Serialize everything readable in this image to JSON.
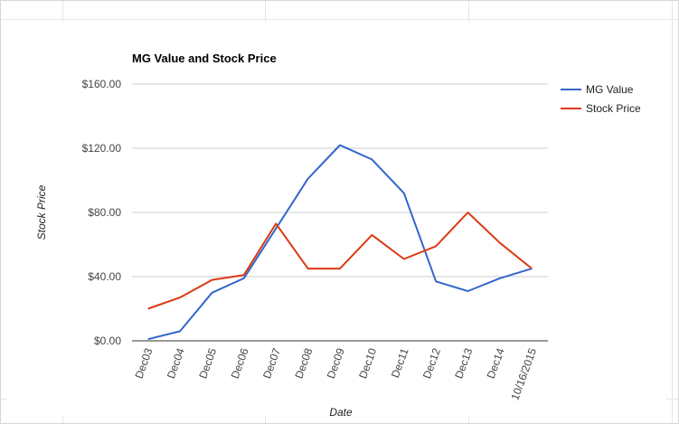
{
  "chart_data": {
    "type": "line",
    "title": "MG Value and Stock Price",
    "xlabel": "Date",
    "ylabel": "Stock Price",
    "categories": [
      "Dec03",
      "Dec04",
      "Dec05",
      "Dec06",
      "Dec07",
      "Dec08",
      "Dec09",
      "Dec10",
      "Dec11",
      "Dec12",
      "Dec13",
      "Dec14",
      "10/16/2015"
    ],
    "y_ticks": [
      "$0.00",
      "$40.00",
      "$80.00",
      "$120.00",
      "$160.00"
    ],
    "ylim": [
      0,
      160
    ],
    "grid": true,
    "legend_position": "right",
    "series": [
      {
        "name": "MG Value",
        "color": "#3366cc",
        "values": [
          1,
          6,
          30,
          39,
          70,
          101,
          122,
          113,
          92,
          37,
          31,
          39,
          45
        ]
      },
      {
        "name": "Stock Price",
        "color": "#dc3912",
        "values": [
          20,
          27,
          38,
          41,
          73,
          45,
          45,
          66,
          51,
          59,
          80,
          61,
          45
        ]
      }
    ]
  }
}
